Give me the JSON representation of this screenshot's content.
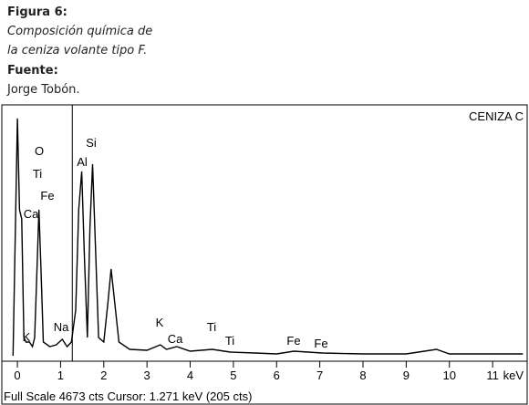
{
  "caption": {
    "label": "Figura 6:",
    "line1": "Composición química de",
    "line2": "la ceniza volante tipo F.",
    "source_label": "Fuente:",
    "source": "Jorge Tobón."
  },
  "chart_data": {
    "type": "line",
    "title": "CENIZA C",
    "x_label": "keV",
    "status": "Full Scale 4673 cts  Cursor: 1.271 keV (205 cts)",
    "cursor": 1.271,
    "x": [
      -0.1,
      0.0,
      0.05,
      0.1,
      0.15,
      0.2,
      0.28,
      0.35,
      0.4,
      0.45,
      0.5,
      0.55,
      0.6,
      0.75,
      0.9,
      1.04,
      1.15,
      1.25,
      1.35,
      1.42,
      1.49,
      1.55,
      1.62,
      1.68,
      1.74,
      1.8,
      1.88,
      2.0,
      2.1,
      2.17,
      2.25,
      2.35,
      2.6,
      3.0,
      3.31,
      3.45,
      3.69,
      4.0,
      4.51,
      4.93,
      5.5,
      6.0,
      6.4,
      7.06,
      8.0,
      9.0,
      9.7,
      10.0,
      11.7
    ],
    "series": [
      {
        "color": "#000000",
        "values": [
          0,
          4420,
          2720,
          2550,
          340,
          255,
          255,
          170,
          340,
          1530,
          2720,
          1530,
          255,
          170,
          204,
          306,
          170,
          255,
          850,
          2720,
          3434,
          1870,
          340,
          2380,
          3570,
          2210,
          340,
          255,
          1020,
          1615,
          1020,
          255,
          119,
          102,
          204,
          119,
          170,
          85,
          119,
          68,
          51,
          34,
          85,
          51,
          34,
          34,
          119,
          34,
          34
        ]
      }
    ],
    "annotations": [
      "O",
      "Ti",
      "Fe",
      "Ca",
      "Si",
      "Al",
      "K",
      "Na",
      "K",
      "Ca",
      "Ti",
      "Ti",
      "Fe",
      "Fe"
    ],
    "xlim": [
      -0.36,
      11.8
    ],
    "ylim": [
      0,
      4673
    ],
    "xticks": [
      0,
      1,
      2,
      3,
      4,
      5,
      6,
      7,
      8,
      9,
      10,
      11
    ]
  }
}
